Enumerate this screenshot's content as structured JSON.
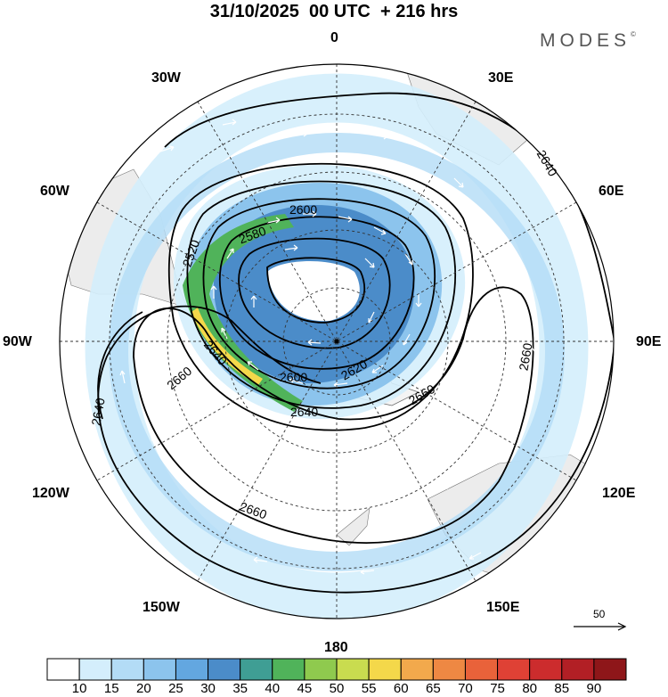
{
  "header": {
    "title": "31/10/2025  00 UTC  + 216 hrs",
    "brand": "MODES",
    "brand_mark": "©"
  },
  "map": {
    "projection": "south-polar-stereographic",
    "longitude_labels": {
      "lon_0": "0",
      "lon_30e": "30E",
      "lon_60e": "60E",
      "lon_90e": "90E",
      "lon_120e": "120E",
      "lon_150e": "150E",
      "lon_180": "180",
      "lon_150w": "150W",
      "lon_120w": "120W",
      "lon_90w": "90W",
      "lon_60w": "60W",
      "lon_30w": "30W"
    },
    "contour_labels": [
      "2520",
      "2580",
      "2600",
      "2640",
      "2660",
      "2600",
      "2620",
      "2640",
      "2660",
      "2660",
      "2640",
      "2660",
      "2640"
    ],
    "reference_vector": "50"
  },
  "colorbar": {
    "labels": [
      "10",
      "15",
      "20",
      "25",
      "30",
      "35",
      "40",
      "45",
      "50",
      "55",
      "60",
      "65",
      "70",
      "75",
      "80",
      "85",
      "90"
    ],
    "colors": [
      "#ffffff",
      "#d4eefc",
      "#b3dcf6",
      "#8cc4ed",
      "#63a7e0",
      "#4b8cc9",
      "#3f9e94",
      "#50b35a",
      "#8fca4e",
      "#c9dc4f",
      "#f4d84a",
      "#f2a94c",
      "#ee8843",
      "#e9623a",
      "#df4135",
      "#cc2c2d",
      "#b21f25",
      "#8e1619"
    ]
  }
}
